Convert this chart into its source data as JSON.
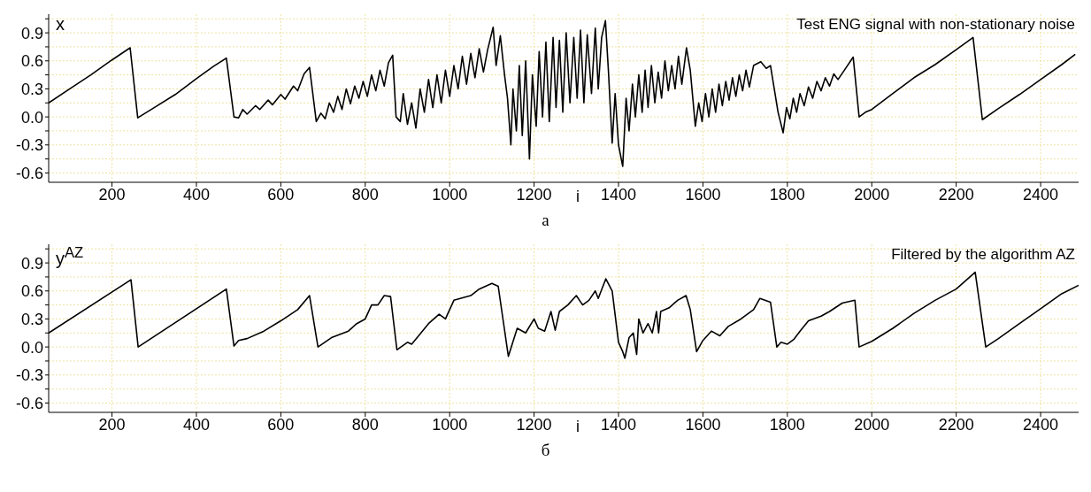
{
  "chart_data": [
    {
      "type": "line",
      "title": "Test ENG signal with non-stationary noise",
      "xlabel": "i",
      "ylabel": "x",
      "annotations": [
        "а"
      ],
      "grid": true,
      "marker": "none",
      "line_style": "solid",
      "xlim": [
        50,
        2490
      ],
      "ylim": [
        -0.7,
        1.1
      ],
      "xticks": [
        200,
        400,
        600,
        800,
        1000,
        1200,
        1400,
        1600,
        1800,
        2000,
        2200,
        2400
      ],
      "yticks": [
        -0.6,
        {
          "value": -0.45,
          "label": null
        },
        -0.3,
        {
          "value": -0.15,
          "label": null
        },
        {
          "value": 0,
          "label": "0.0"
        },
        {
          "value": 0.15,
          "label": null
        },
        0.3,
        {
          "value": 0.45,
          "label": null
        },
        0.6,
        {
          "value": 0.75,
          "label": null
        },
        0.9,
        {
          "value": 1.05,
          "label": null
        }
      ],
      "series": [
        {
          "color": "#000000",
          "x": [
            50,
            100,
            150,
            200,
            243,
            261,
            300,
            350,
            400,
            440,
            471,
            489,
            500,
            510,
            520,
            540,
            550,
            570,
            580,
            600,
            610,
            630,
            640,
            655,
            668,
            684,
            695,
            705,
            715,
            725,
            735,
            745,
            755,
            765,
            775,
            785,
            795,
            805,
            815,
            825,
            835,
            845,
            855,
            865,
            873,
            883,
            890,
            900,
            910,
            920,
            930,
            940,
            950,
            960,
            970,
            980,
            990,
            1000,
            1010,
            1020,
            1030,
            1040,
            1050,
            1060,
            1070,
            1080,
            1090,
            1103,
            1110,
            1120,
            1130,
            1137,
            1145,
            1150,
            1158,
            1165,
            1172,
            1180,
            1189,
            1196,
            1205,
            1212,
            1220,
            1228,
            1236,
            1245,
            1252,
            1260,
            1268,
            1276,
            1285,
            1294,
            1302,
            1310,
            1318,
            1326,
            1336,
            1345,
            1352,
            1360,
            1369,
            1376,
            1385,
            1392,
            1400,
            1410,
            1418,
            1425,
            1433,
            1440,
            1448,
            1456,
            1463,
            1470,
            1478,
            1486,
            1494,
            1502,
            1510,
            1518,
            1526,
            1534,
            1542,
            1550,
            1561,
            1570,
            1582,
            1590,
            1598,
            1606,
            1614,
            1622,
            1630,
            1638,
            1646,
            1654,
            1662,
            1670,
            1678,
            1686,
            1694,
            1702,
            1710,
            1720,
            1737,
            1750,
            1760,
            1778,
            1790,
            1798,
            1806,
            1814,
            1822,
            1830,
            1840,
            1850,
            1860,
            1870,
            1880,
            1890,
            1900,
            1910,
            1920,
            1935,
            1956,
            1970,
            1985,
            2000,
            2050,
            2100,
            2150,
            2200,
            2240,
            2262,
            2300,
            2350,
            2400,
            2450,
            2482
          ],
          "values": [
            0.15,
            0.3,
            0.45,
            0.61,
            0.74,
            -0.01,
            0.1,
            0.24,
            0.41,
            0.54,
            0.63,
            0,
            -0.01,
            0.08,
            0.03,
            0.12,
            0.08,
            0.18,
            0.13,
            0.24,
            0.19,
            0.33,
            0.28,
            0.46,
            0.53,
            -0.05,
            0.04,
            -0.02,
            0.15,
            0.05,
            0.22,
            0.08,
            0.3,
            0.14,
            0.33,
            0.2,
            0.38,
            0.22,
            0.45,
            0.28,
            0.5,
            0.33,
            0.58,
            0.66,
            0,
            -0.05,
            0.25,
            -0.08,
            0.15,
            -0.12,
            0.3,
            0.05,
            0.4,
            0.1,
            0.45,
            0.15,
            0.5,
            0.22,
            0.55,
            0.3,
            0.65,
            0.35,
            0.68,
            0.42,
            0.73,
            0.48,
            0.72,
            0.96,
            0.55,
            0.87,
            0.45,
            0.2,
            -0.3,
            0.3,
            -0.15,
            0.55,
            -0.2,
            0.6,
            -0.45,
            0.45,
            -0.1,
            0.7,
            0,
            0.8,
            -0.05,
            0.85,
            0.1,
            0.82,
            0.05,
            0.9,
            0.15,
            0.85,
            0.2,
            0.93,
            0.15,
            0.88,
            0.25,
            0.95,
            0.3,
            0.85,
            1.03,
            0.5,
            -0.28,
            0.25,
            -0.3,
            -0.53,
            0.2,
            -0.15,
            0.35,
            0,
            0.45,
            0.05,
            0.5,
            0.1,
            0.55,
            0.15,
            0.48,
            0.2,
            0.6,
            0.28,
            0.55,
            0.3,
            0.65,
            0.35,
            0.74,
            0.5,
            -0.1,
            0.15,
            -0.05,
            0.25,
            0,
            0.3,
            0.05,
            0.35,
            0.12,
            0.38,
            0.18,
            0.42,
            0.22,
            0.45,
            0.28,
            0.5,
            0.32,
            0.55,
            0.59,
            0.52,
            0.55,
            0.05,
            -0.17,
            0.1,
            -0.02,
            0.2,
            0.05,
            0.25,
            0.12,
            0.32,
            0.2,
            0.38,
            0.28,
            0.42,
            0.33,
            0.46,
            0.4,
            0.5,
            0.64,
            0,
            0.05,
            0.08,
            0.25,
            0.42,
            0.56,
            0.72,
            0.85,
            -0.03,
            0.09,
            0.24,
            0.4,
            0.56,
            0.67
          ]
        }
      ]
    },
    {
      "type": "line",
      "title": "Filtered by the algorithm AZ",
      "xlabel": "i",
      "ylabel": "y$^{AZ}$",
      "annotations": [
        "б"
      ],
      "grid": true,
      "marker": "none",
      "line_style": "solid",
      "xlim": [
        50,
        2490
      ],
      "ylim": [
        -0.7,
        1.1
      ],
      "xticks": [
        200,
        400,
        600,
        800,
        1000,
        1200,
        1400,
        1600,
        1800,
        2000,
        2200,
        2400
      ],
      "yticks": [
        -0.6,
        {
          "value": -0.45,
          "label": null
        },
        -0.3,
        {
          "value": -0.15,
          "label": null
        },
        {
          "value": 0,
          "label": "0.0"
        },
        {
          "value": 0.15,
          "label": null
        },
        0.3,
        {
          "value": 0.45,
          "label": null
        },
        0.6,
        {
          "value": 0.75,
          "label": null
        },
        0.9,
        {
          "value": 1.05,
          "label": null
        }
      ],
      "series": [
        {
          "color": "#000000",
          "x": [
            50,
            245,
            262,
            471,
            489,
            500,
            520,
            560,
            600,
            640,
            668,
            688,
            720,
            760,
            780,
            800,
            815,
            830,
            845,
            860,
            875,
            900,
            910,
            950,
            975,
            990,
            1000,
            1010,
            1050,
            1070,
            1100,
            1115,
            1139,
            1160,
            1180,
            1200,
            1210,
            1225,
            1240,
            1250,
            1260,
            1280,
            1300,
            1315,
            1330,
            1345,
            1352,
            1370,
            1385,
            1400,
            1410,
            1415,
            1425,
            1435,
            1443,
            1448,
            1458,
            1470,
            1480,
            1490,
            1495,
            1500,
            1520,
            1540,
            1560,
            1570,
            1585,
            1600,
            1620,
            1640,
            1660,
            1690,
            1720,
            1735,
            1760,
            1775,
            1785,
            1800,
            1815,
            1830,
            1850,
            1880,
            1900,
            1930,
            1960,
            1970,
            2000,
            2050,
            2100,
            2150,
            2200,
            2245,
            2270,
            2300,
            2350,
            2400,
            2450,
            2490
          ],
          "values": [
            0.15,
            0.72,
            0,
            0.62,
            0.01,
            0.07,
            0.09,
            0.17,
            0.28,
            0.4,
            0.55,
            0,
            0.1,
            0.17,
            0.25,
            0.3,
            0.45,
            0.45,
            0.55,
            0.54,
            -0.03,
            0.05,
            0.03,
            0.25,
            0.35,
            0.3,
            0.4,
            0.5,
            0.55,
            0.62,
            0.68,
            0.65,
            -0.1,
            0.2,
            0.15,
            0.3,
            0.2,
            0.17,
            0.38,
            0.18,
            0.38,
            0.45,
            0.55,
            0.45,
            0.5,
            0.6,
            0.52,
            0.73,
            0.6,
            0.05,
            -0.05,
            -0.12,
            0.1,
            0.15,
            -0.08,
            0.3,
            0.15,
            0.25,
            0.15,
            0.38,
            0.15,
            0.38,
            0.42,
            0.5,
            0.55,
            0.4,
            -0.05,
            0.07,
            0.17,
            0.12,
            0.22,
            0.3,
            0.4,
            0.52,
            0.48,
            0,
            0.05,
            0.03,
            0.08,
            0.17,
            0.28,
            0.33,
            0.38,
            0.47,
            0.5,
            0,
            0.06,
            0.2,
            0.36,
            0.5,
            0.62,
            0.8,
            0,
            0.09,
            0.25,
            0.41,
            0.57,
            0.66
          ]
        }
      ]
    }
  ]
}
